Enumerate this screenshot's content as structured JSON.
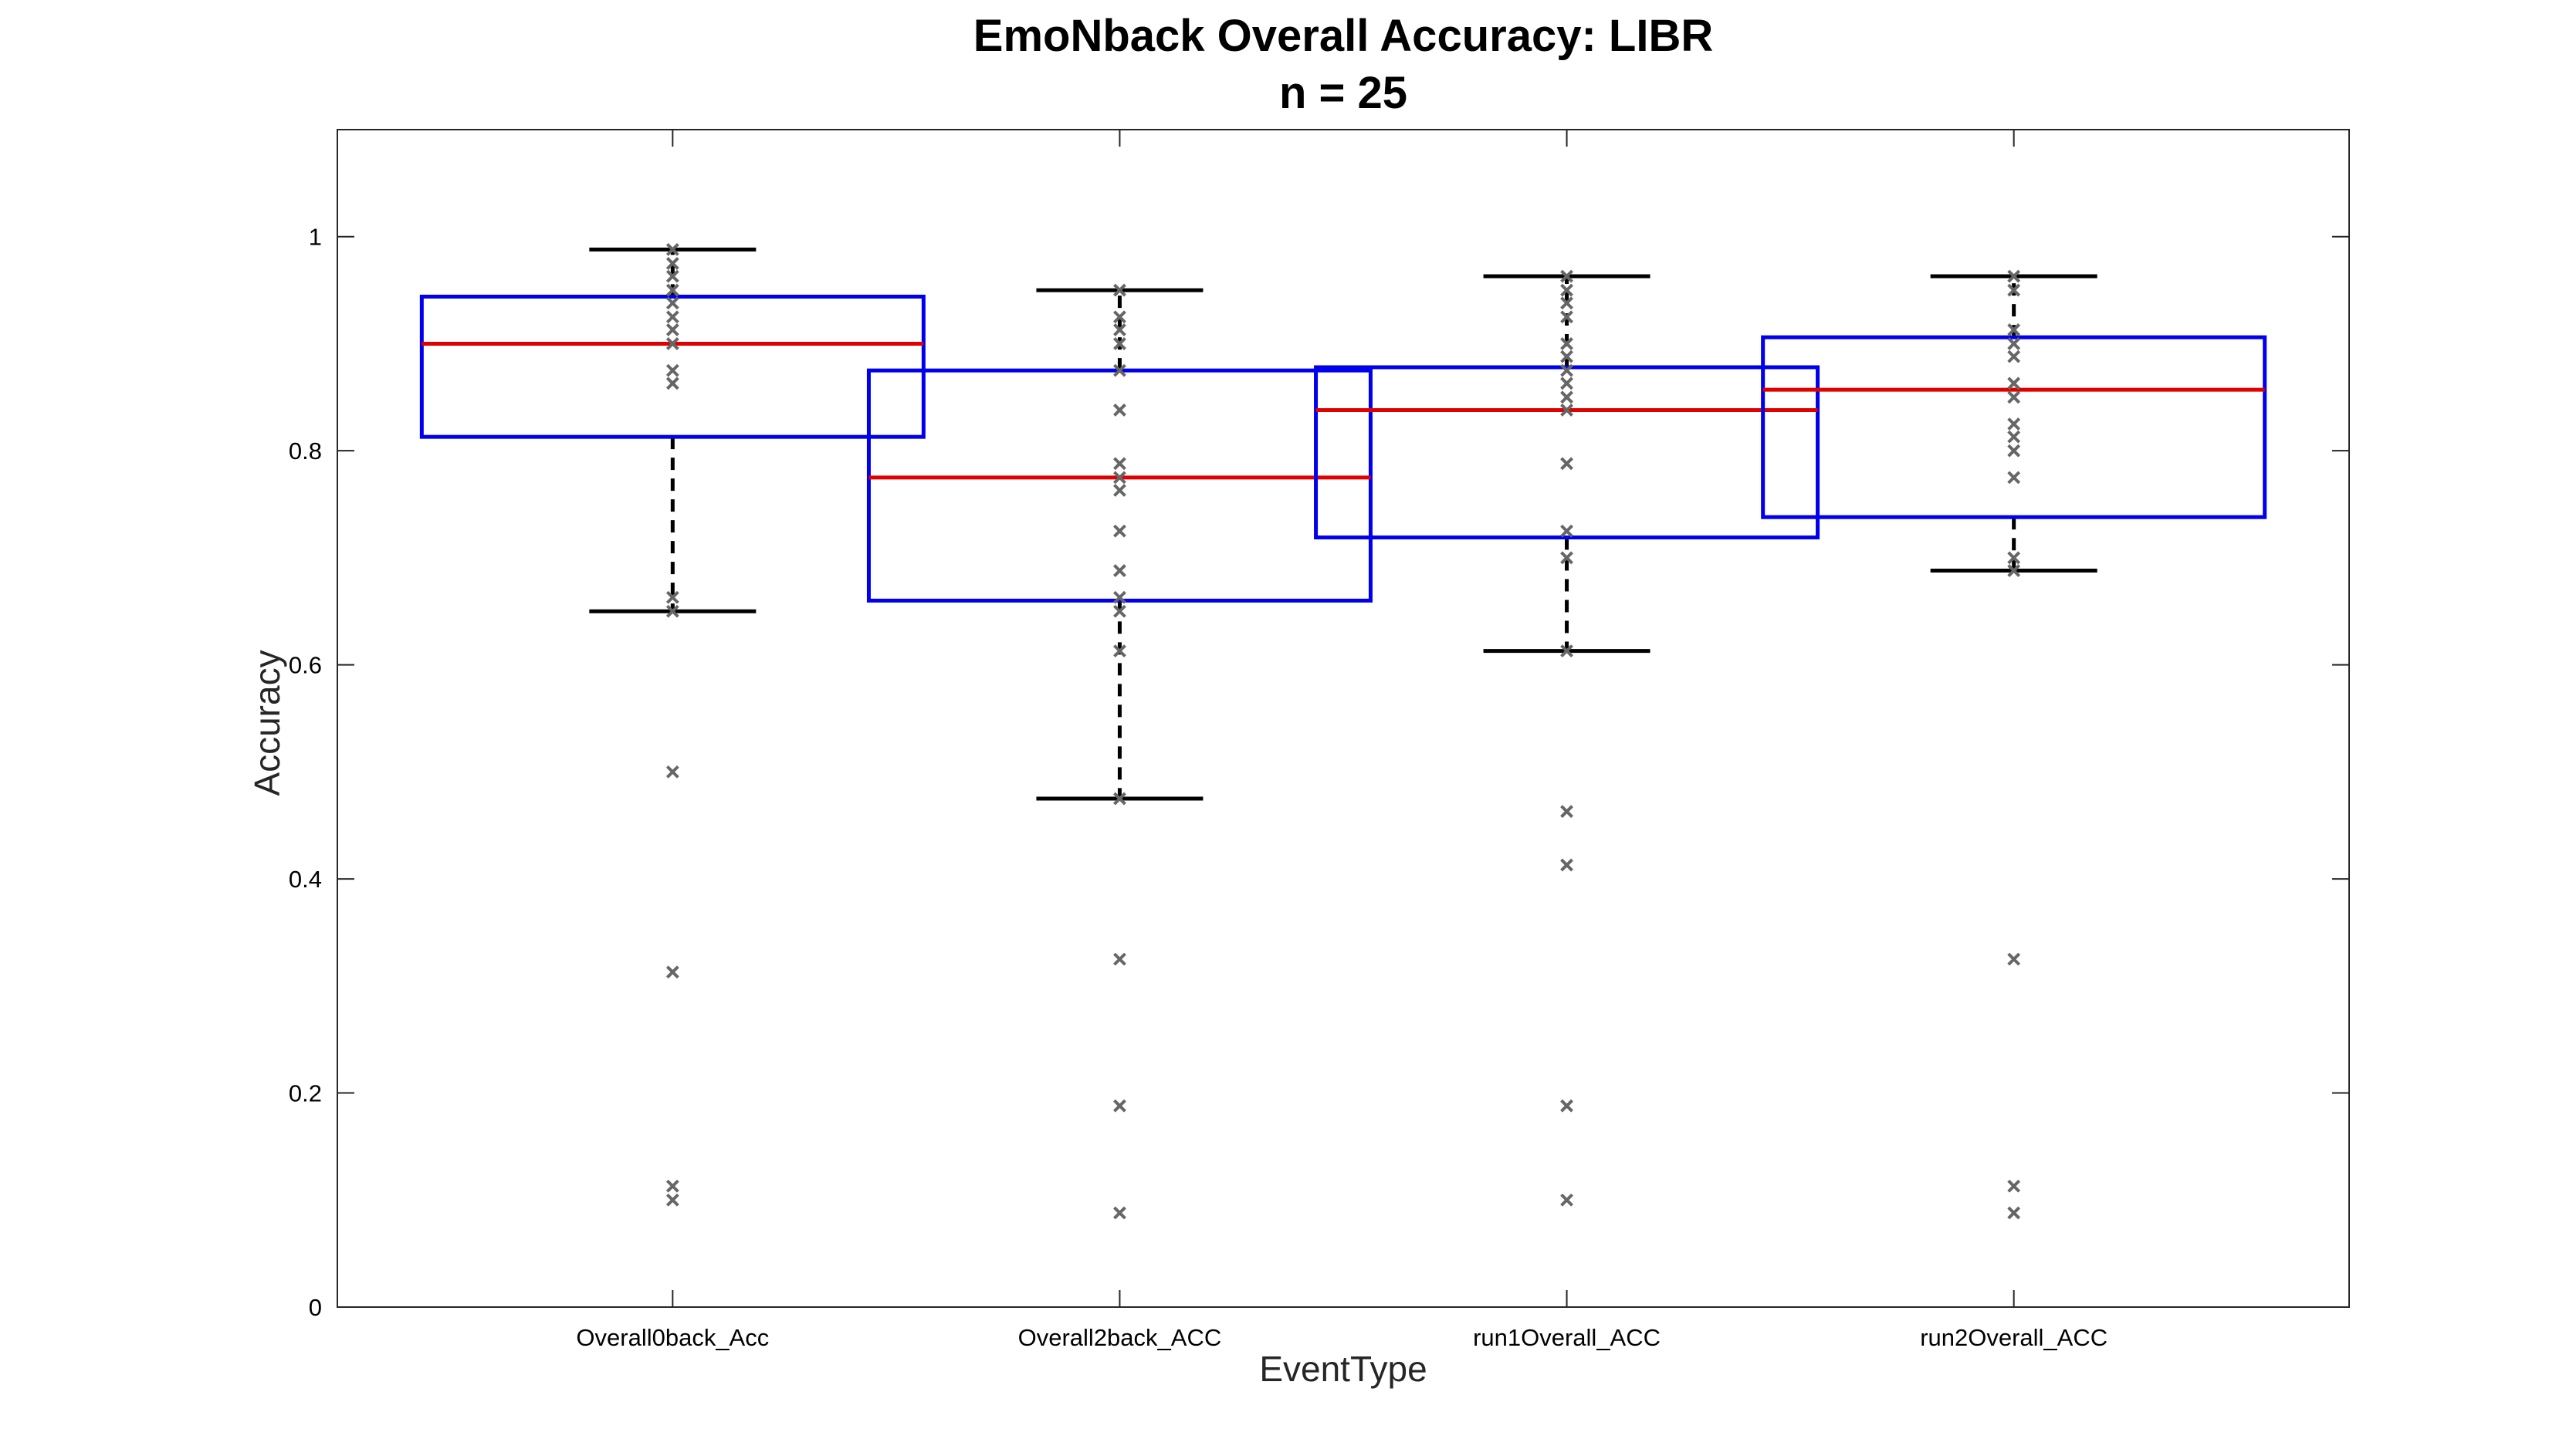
{
  "chart_data": {
    "type": "box",
    "title": "EmoNback Overall Accuracy: LIBR",
    "subtitle": "n = 25",
    "xlabel": "EventType",
    "ylabel": "Accuracy",
    "ylim": [
      0,
      1.1
    ],
    "yticks": [
      0,
      0.2,
      0.4,
      0.6,
      0.8,
      1
    ],
    "ytick_labels": [
      "0",
      "0.2",
      "0.4",
      "0.6",
      "0.8",
      "1"
    ],
    "grid": false,
    "categories": [
      "Overall0back_Acc",
      "Overall2back_ACC",
      "run1Overall_ACC",
      "run2Overall_ACC"
    ],
    "colors": {
      "box": "#0000ee",
      "median": "#e00000",
      "whisker": "#000000",
      "points": "#666666"
    },
    "boxes": [
      {
        "q1": 0.813,
        "median": 0.9,
        "q3": 0.944,
        "whisker_low": 0.65,
        "whisker_high": 0.988,
        "points": [
          0.988,
          0.975,
          0.963,
          0.95,
          0.938,
          0.925,
          0.913,
          0.9,
          0.875,
          0.863,
          0.663,
          0.65,
          0.5,
          0.313,
          0.113,
          0.1
        ]
      },
      {
        "q1": 0.66,
        "median": 0.775,
        "q3": 0.875,
        "whisker_low": 0.475,
        "whisker_high": 0.95,
        "points": [
          0.95,
          0.925,
          0.913,
          0.9,
          0.875,
          0.838,
          0.788,
          0.775,
          0.763,
          0.725,
          0.688,
          0.663,
          0.65,
          0.613,
          0.475,
          0.325,
          0.188,
          0.088
        ]
      },
      {
        "q1": 0.719,
        "median": 0.838,
        "q3": 0.878,
        "whisker_low": 0.613,
        "whisker_high": 0.963,
        "points": [
          0.963,
          0.95,
          0.938,
          0.925,
          0.9,
          0.888,
          0.875,
          0.863,
          0.85,
          0.838,
          0.788,
          0.725,
          0.7,
          0.613,
          0.463,
          0.413,
          0.188,
          0.1
        ]
      },
      {
        "q1": 0.738,
        "median": 0.857,
        "q3": 0.906,
        "whisker_low": 0.688,
        "whisker_high": 0.963,
        "points": [
          0.963,
          0.95,
          0.913,
          0.9,
          0.888,
          0.863,
          0.85,
          0.825,
          0.813,
          0.8,
          0.775,
          0.7,
          0.688,
          0.325,
          0.113,
          0.088
        ]
      }
    ]
  }
}
